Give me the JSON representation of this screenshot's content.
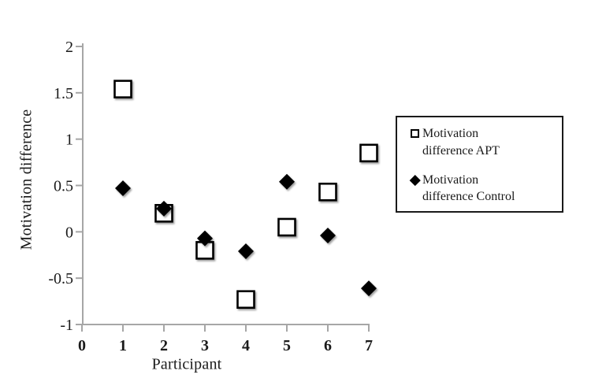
{
  "chart_data": {
    "type": "scatter",
    "title": "",
    "xlabel": "Participant",
    "ylabel": "Motivation difference",
    "x": [
      1,
      2,
      3,
      4,
      5,
      6,
      7
    ],
    "series": [
      {
        "name": "Motivation difference APT",
        "marker": "open-square",
        "fill": "#ffffff",
        "stroke": "#000000",
        "values": [
          1.54,
          0.2,
          -0.2,
          -0.73,
          0.05,
          0.43,
          0.85
        ]
      },
      {
        "name": "Motivation difference Control",
        "marker": "filled-diamond",
        "fill": "#000000",
        "stroke": "#000000",
        "values": [
          0.47,
          0.25,
          -0.07,
          -0.21,
          0.54,
          -0.04,
          -0.61
        ]
      }
    ],
    "xlim": [
      0,
      7
    ],
    "ylim": [
      -1,
      2
    ],
    "xtick_values": [
      0,
      1,
      2,
      3,
      4,
      5,
      6,
      7
    ],
    "xtick_labels": [
      "0",
      "1",
      "2",
      "3",
      "4",
      "5",
      "6",
      "7"
    ],
    "ytick_values": [
      -1,
      -0.5,
      0,
      0.5,
      1,
      1.5,
      2
    ],
    "ytick_labels": [
      "-1",
      "-0.5",
      "0",
      "0.5",
      "1",
      "1.5",
      "2"
    ],
    "grid": false,
    "legend_position": "right",
    "axis_color": "#a6a6a6",
    "text_color": "#1a1a1a"
  },
  "legend": {
    "items": [
      {
        "label": "Motivation difference APT",
        "marker": "open-square"
      },
      {
        "label": "Motivation difference Control",
        "marker": "filled-diamond"
      }
    ]
  }
}
